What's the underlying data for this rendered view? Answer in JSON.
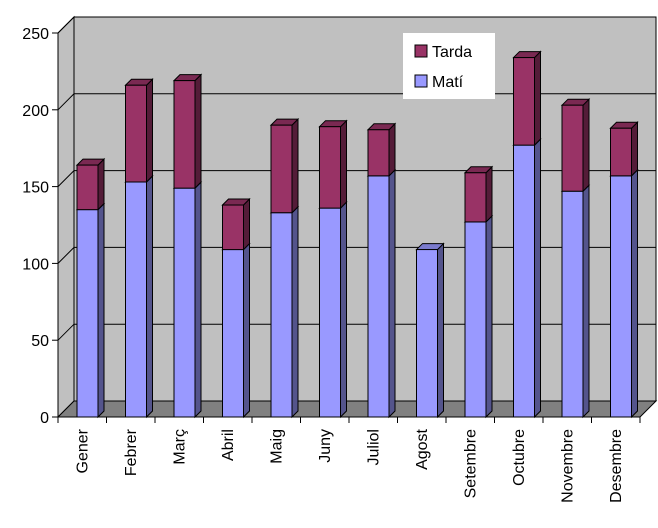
{
  "chart_data": {
    "type": "bar",
    "stacked": true,
    "three_d": true,
    "categories": [
      "Gener",
      "Febrer",
      "Març",
      "Abril",
      "Maig",
      "Juny",
      "Juliol",
      "Agost",
      "Setembre",
      "Octubre",
      "Novembre",
      "Desembre"
    ],
    "series": [
      {
        "name": "Matí",
        "color": "#9999ff",
        "values": [
          135,
          153,
          149,
          109,
          133,
          136,
          157,
          109,
          127,
          177,
          147,
          157
        ]
      },
      {
        "name": "Tarda",
        "color": "#993366",
        "values": [
          29,
          63,
          70,
          29,
          57,
          53,
          30,
          0,
          32,
          57,
          56,
          31
        ]
      }
    ],
    "ylim": [
      0,
      250
    ],
    "yticks": [
      0,
      50,
      100,
      150,
      200,
      250
    ],
    "grid": true,
    "legend_position": "top-right",
    "legend_order": [
      "Tarda",
      "Matí"
    ],
    "background_color": "#c0c0c0",
    "floor_color": "#808080"
  }
}
